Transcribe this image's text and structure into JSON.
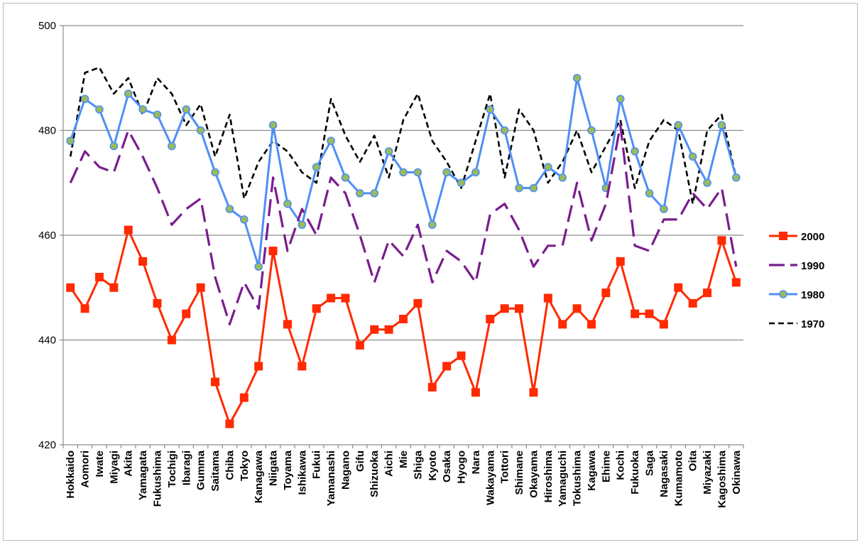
{
  "chart_data": {
    "type": "line",
    "title": "",
    "xlabel": "",
    "ylabel": "",
    "ylim": [
      420,
      500
    ],
    "yticks": [
      420,
      440,
      460,
      480,
      500
    ],
    "grid": "horizontal",
    "legend_position": "right",
    "categories": [
      "Hokkaido",
      "Aomori",
      "Iwate",
      "Miyagi",
      "Akita",
      "Yamagata",
      "Fukushima",
      "Tochigi",
      "Ibaragi",
      "Gumma",
      "Saitama",
      "Chiba",
      "Tokyo",
      "Kanagawa",
      "Niigata",
      "Toyama",
      "Ishikawa",
      "Fukui",
      "Yamanashi",
      "Nagano",
      "Gifu",
      "Shizuoka",
      "Aichi",
      "Mie",
      "Shiga",
      "Kyoto",
      "Osaka",
      "Hyogo",
      "Nara",
      "Wakayama",
      "Tottori",
      "Shimane",
      "Okayama",
      "Hiroshima",
      "Yamaguchi",
      "Tokushima",
      "Kagawa",
      "Ehime",
      "Kochi",
      "Fukuoka",
      "Saga",
      "Nagasaki",
      "Kumamoto",
      "Oita",
      "Miyazaki",
      "Kagoshima",
      "Okinawa"
    ],
    "series": [
      {
        "name": "2000",
        "color": "#ff2a00",
        "style": "solid-square-markers",
        "values": [
          450,
          446,
          452,
          450,
          461,
          455,
          447,
          440,
          445,
          450,
          432,
          424,
          429,
          435,
          457,
          443,
          435,
          446,
          448,
          448,
          439,
          442,
          442,
          444,
          447,
          431,
          435,
          437,
          430,
          444,
          446,
          446,
          430,
          448,
          443,
          446,
          443,
          449,
          455,
          445,
          445,
          443,
          450,
          447,
          449,
          459,
          451
        ]
      },
      {
        "name": "1990",
        "color": "#7a1d8e",
        "style": "long-dash",
        "values": [
          470,
          476,
          473,
          472,
          480,
          475,
          469,
          462,
          465,
          467,
          452,
          443,
          451,
          446,
          471,
          457,
          465,
          460,
          471,
          468,
          460,
          451,
          459,
          456,
          462,
          451,
          457,
          455,
          451,
          464,
          466,
          461,
          454,
          458,
          458,
          470,
          459,
          466,
          481,
          458,
          457,
          463,
          463,
          468,
          465,
          469,
          454
        ]
      },
      {
        "name": "1980",
        "color": "#4f8ff5",
        "marker_color": "#9bbb59",
        "style": "solid-round-markers",
        "values": [
          478,
          486,
          484,
          477,
          487,
          484,
          483,
          477,
          484,
          480,
          472,
          465,
          463,
          454,
          481,
          466,
          462,
          473,
          478,
          471,
          468,
          468,
          476,
          472,
          472,
          462,
          472,
          470,
          472,
          484,
          480,
          469,
          469,
          473,
          471,
          490,
          480,
          469,
          486,
          476,
          468,
          465,
          481,
          475,
          470,
          481,
          471
        ]
      },
      {
        "name": "1970",
        "color": "#000000",
        "style": "short-dash",
        "values": [
          475,
          491,
          492,
          487,
          490,
          483,
          490,
          487,
          481,
          485,
          475,
          483,
          467,
          474,
          478,
          476,
          472,
          470,
          486,
          479,
          474,
          479,
          471,
          482,
          487,
          478,
          474,
          469,
          478,
          487,
          471,
          484,
          480,
          470,
          474,
          480,
          472,
          477,
          482,
          469,
          478,
          482,
          480,
          466,
          480,
          483,
          471
        ]
      }
    ]
  }
}
